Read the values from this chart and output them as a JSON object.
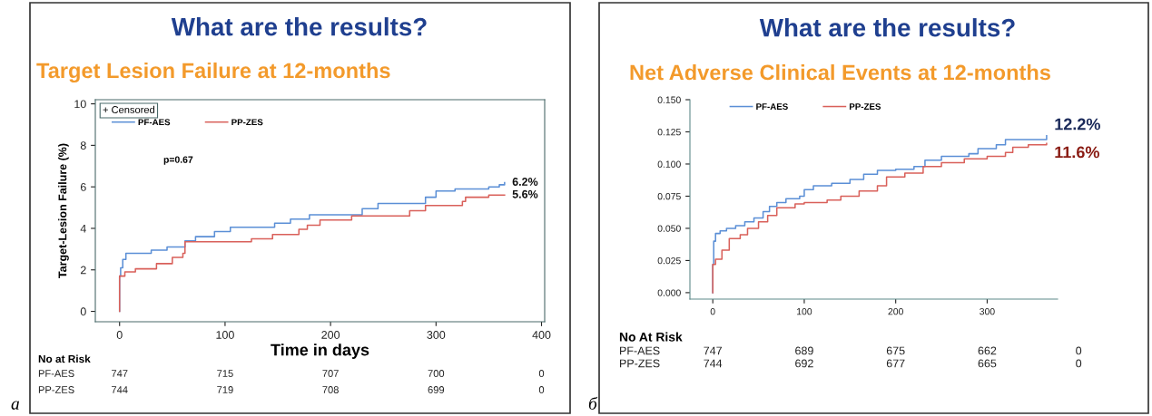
{
  "chart_data": [
    {
      "type": "step",
      "title": "What are the results?",
      "subtitle": "Target Lesion Failure at 12-months",
      "xlabel": "Time in days",
      "ylabel": "Target-Lesion Failure (%)",
      "xlim": [
        -23,
        403
      ],
      "xticks": [
        0,
        100,
        200,
        300,
        400
      ],
      "ylim": [
        -0.5,
        10.2
      ],
      "yticks": [
        0,
        2,
        4,
        6,
        8,
        10
      ],
      "grid": false,
      "legend": "top left",
      "marker": "none",
      "line_style": "solid",
      "series": [
        {
          "name": "PF-AES",
          "color": "#5b8fd6",
          "x": [
            0,
            0,
            1,
            3,
            6,
            30,
            45,
            62,
            72,
            90,
            105,
            147,
            162,
            180,
            230,
            245,
            290,
            300,
            318,
            350,
            360,
            365
          ],
          "values": [
            0,
            1.7,
            2.1,
            2.5,
            2.8,
            2.95,
            3.1,
            3.4,
            3.6,
            3.85,
            4.05,
            4.25,
            4.45,
            4.65,
            4.95,
            5.2,
            5.5,
            5.8,
            5.9,
            6.0,
            6.1,
            6.2
          ]
        },
        {
          "name": "PP-ZES",
          "color": "#d9605a",
          "x": [
            0,
            0,
            5,
            15,
            35,
            50,
            60,
            62,
            125,
            145,
            170,
            178,
            190,
            220,
            275,
            290,
            325,
            328,
            350,
            365
          ],
          "values": [
            0,
            1.7,
            1.9,
            2.05,
            2.3,
            2.6,
            2.8,
            3.35,
            3.5,
            3.7,
            3.95,
            4.15,
            4.4,
            4.6,
            4.85,
            5.1,
            5.3,
            5.5,
            5.6,
            5.6
          ]
        }
      ],
      "annotations": [
        "6.2%",
        "5.6%",
        "p=0.67",
        "+ Censored",
        "No at Risk",
        "PF-AES",
        "747",
        "715",
        "707",
        "700",
        "0",
        "PP-ZES",
        "744",
        "719",
        "708",
        "699",
        "0",
        "а"
      ]
    },
    {
      "type": "step",
      "title": "What are the results?",
      "subtitle": "Net Adverse Clinical Events at 12-months",
      "xlim": [
        -25,
        377
      ],
      "xticks": [
        0,
        100,
        200,
        300
      ],
      "ylim": [
        -0.005,
        0.15
      ],
      "yticks": [
        {
          "value": 0,
          "label": "0.000"
        },
        {
          "value": 0.025,
          "label": "0.025"
        },
        {
          "value": 0.05,
          "label": "0.050"
        },
        {
          "value": 0.075,
          "label": "0.075"
        },
        {
          "value": 0.1,
          "label": "0.100"
        },
        {
          "value": 0.125,
          "label": "0.125"
        },
        {
          "value": 0.15,
          "label": "0.150"
        }
      ],
      "grid": false,
      "legend": "top left",
      "marker": "none",
      "line_style": "solid",
      "series": [
        {
          "name": "PF-AES",
          "color": "#5b8fd6",
          "x": [
            0,
            0,
            1,
            3,
            8,
            15,
            25,
            35,
            45,
            55,
            62,
            70,
            80,
            95,
            100,
            110,
            130,
            150,
            165,
            180,
            200,
            220,
            232,
            250,
            280,
            290,
            310,
            320,
            360,
            365
          ],
          "values": [
            0,
            0.022,
            0.04,
            0.046,
            0.048,
            0.05,
            0.052,
            0.055,
            0.058,
            0.063,
            0.067,
            0.07,
            0.073,
            0.075,
            0.08,
            0.083,
            0.085,
            0.088,
            0.092,
            0.095,
            0.096,
            0.098,
            0.103,
            0.106,
            0.108,
            0.112,
            0.115,
            0.119,
            0.119,
            0.122
          ]
        },
        {
          "name": "PP-ZES",
          "color": "#d9605a",
          "x": [
            0,
            0,
            3,
            10,
            18,
            30,
            38,
            50,
            60,
            70,
            90,
            100,
            125,
            140,
            160,
            180,
            190,
            210,
            230,
            250,
            275,
            300,
            320,
            328,
            345,
            365
          ],
          "values": [
            0,
            0.022,
            0.026,
            0.033,
            0.042,
            0.045,
            0.05,
            0.055,
            0.06,
            0.066,
            0.069,
            0.07,
            0.072,
            0.075,
            0.079,
            0.083,
            0.09,
            0.093,
            0.098,
            0.101,
            0.104,
            0.106,
            0.109,
            0.113,
            0.115,
            0.116
          ]
        }
      ],
      "annotations": [
        "12.2%",
        "11.6%",
        "No At Risk",
        "PF-AES",
        "747",
        "689",
        "675",
        "662",
        "0",
        "PP-ZES",
        "744",
        "692",
        "677",
        "665",
        "0",
        "б"
      ]
    }
  ]
}
